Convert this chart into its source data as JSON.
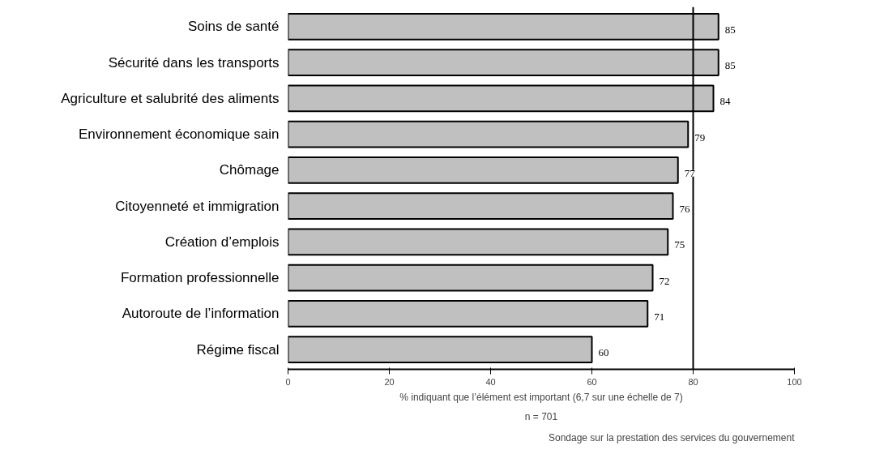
{
  "chart_data": {
    "type": "bar",
    "orientation": "horizontal",
    "categories": [
      "Soins de santé",
      "Sécurité dans les transports",
      "Agriculture et salubrité des aliments",
      "Environnement économique sain",
      "Chômage",
      "Citoyenneté et immigration",
      "Création d’emplois",
      "Formation professionnelle",
      "Autoroute de l’information",
      "Régime fiscal"
    ],
    "values": [
      85,
      85,
      84,
      79,
      77,
      76,
      75,
      72,
      71,
      60
    ],
    "color": "#c0c0c0",
    "xlim": [
      0,
      100
    ],
    "xticks": [
      0,
      20,
      40,
      60,
      80,
      100
    ],
    "data_labels": true,
    "xlabel": "% indiquant que l’élément est important (6,7 sur une échelle de 7)",
    "ref_lines": [
      {
        "axis": "x",
        "value": 80,
        "color": "#000000"
      }
    ],
    "annotations": [
      "n = 701",
      "Sondage sur la prestation des services du gouvernement"
    ]
  }
}
